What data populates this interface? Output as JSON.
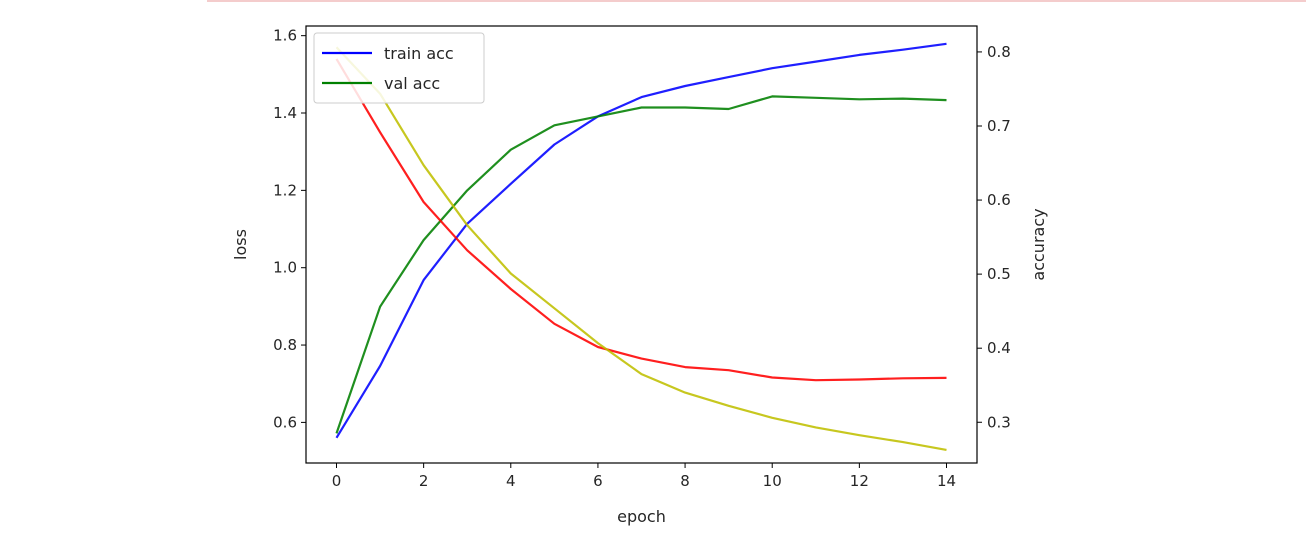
{
  "chart_data": {
    "type": "line",
    "xlabel": "epoch",
    "ylabel_left": "loss",
    "ylabel_right": "accuracy",
    "xlim": [
      -0.7,
      14.7
    ],
    "ylim_left": [
      0.495,
      1.625
    ],
    "ylim_right": [
      0.245,
      0.835
    ],
    "x_ticks": [
      0,
      2,
      4,
      6,
      8,
      10,
      12,
      14
    ],
    "y_ticks_left": [
      0.6,
      0.8,
      1.0,
      1.2,
      1.4,
      1.6
    ],
    "y_ticks_right": [
      0.3,
      0.4,
      0.5,
      0.6,
      0.7,
      0.8
    ],
    "grid": false,
    "legend_position": "top-left",
    "x": [
      0,
      1,
      2,
      3,
      4,
      5,
      6,
      7,
      8,
      9,
      10,
      11,
      12,
      13,
      14
    ],
    "series": [
      {
        "name": "train acc",
        "axis": "right",
        "color": "#0000ff",
        "values": [
          0.279,
          0.376,
          0.492,
          0.568,
          0.622,
          0.675,
          0.713,
          0.739,
          0.754,
          0.766,
          0.778,
          0.787,
          0.796,
          0.803,
          0.811
        ]
      },
      {
        "name": "val acc",
        "axis": "right",
        "color": "#008000",
        "values": [
          0.285,
          0.456,
          0.546,
          0.613,
          0.668,
          0.701,
          0.713,
          0.725,
          0.725,
          0.723,
          0.74,
          0.738,
          0.736,
          0.737,
          0.735
        ]
      },
      {
        "axis": "left",
        "color": "#ff0000",
        "values": [
          1.54,
          1.35,
          1.17,
          1.045,
          0.945,
          0.855,
          0.795,
          0.765,
          0.743,
          0.735,
          0.716,
          0.709,
          0.711,
          0.714,
          0.715
        ]
      },
      {
        "axis": "left",
        "color": "#bfbf00",
        "values": [
          1.57,
          1.45,
          1.265,
          1.11,
          0.985,
          0.895,
          0.805,
          0.725,
          0.677,
          0.643,
          0.612,
          0.587,
          0.567,
          0.549,
          0.529
        ]
      }
    ]
  }
}
